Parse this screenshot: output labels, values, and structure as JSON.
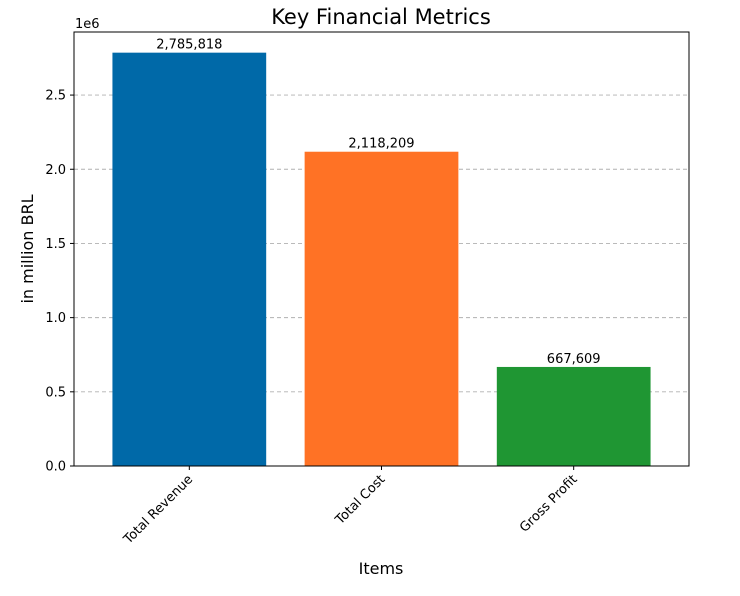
{
  "chart_data": {
    "type": "bar",
    "title": "Key Financial Metrics",
    "xlabel": "Items",
    "ylabel": "in million BRL",
    "categories": [
      "Total Revenue",
      "Total Cost",
      "Gross Profit"
    ],
    "values": [
      2785818,
      2118209,
      667609
    ],
    "value_labels": [
      "2,785,818",
      "2,118,209",
      "667,609"
    ],
    "colors": [
      "#0069a8",
      "#ff7225",
      "#1f9633"
    ],
    "ylim": [
      0,
      2925109
    ],
    "yticks": [
      0,
      500000,
      1000000,
      1500000,
      2000000,
      2500000
    ],
    "ytick_labels": [
      "0.0",
      "0.5",
      "1.0",
      "1.5",
      "2.0",
      "2.5"
    ],
    "y_offset_label": "1e6",
    "grid": "y-dashed",
    "legend": "none"
  }
}
